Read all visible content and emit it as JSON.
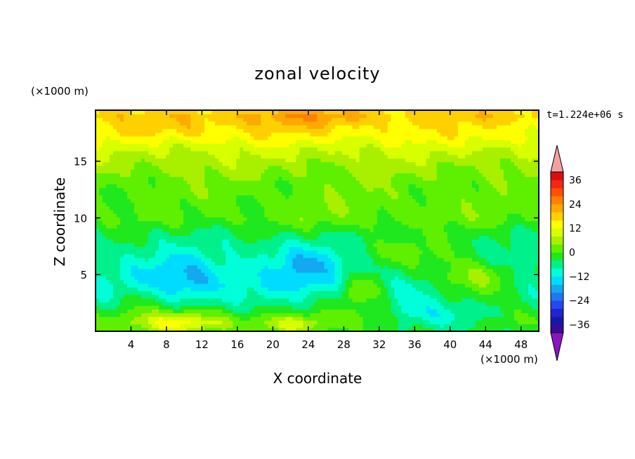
{
  "chart_data": {
    "type": "heatmap",
    "title": "zonal velocity",
    "xlabel": "X coordinate",
    "ylabel": "Z coordinate",
    "x_unit": "(×1000 m)",
    "y_unit": "(×1000 m)",
    "time_label": "t=1.224e+06 s",
    "xlim": [
      0,
      50
    ],
    "ylim": [
      0,
      19.5
    ],
    "x_ticks": [
      4,
      8,
      12,
      16,
      20,
      24,
      28,
      32,
      36,
      40,
      44,
      48
    ],
    "y_ticks": [
      5,
      10,
      15
    ],
    "colorbar": {
      "levels": [
        -40,
        -36,
        -32,
        -28,
        -24,
        -20,
        -16,
        -12,
        -8,
        -4,
        0,
        4,
        8,
        12,
        16,
        20,
        24,
        28,
        32,
        36,
        40
      ],
      "colors": [
        "#3a0a9a",
        "#1818a8",
        "#1f24d0",
        "#2348f0",
        "#1e78f0",
        "#14a8f0",
        "#00dcff",
        "#00ffd8",
        "#00f08c",
        "#20e81e",
        "#5ef000",
        "#a8f000",
        "#d8ff00",
        "#ffff00",
        "#ffd000",
        "#ffa800",
        "#ff8000",
        "#ff5000",
        "#f02814",
        "#d81010"
      ],
      "under_color": "#8a14c0",
      "over_color": "#f4a0a0",
      "tick_values": [
        -36,
        -24,
        -12,
        0,
        12,
        24,
        36
      ]
    },
    "field": {
      "base_profile": [
        [
          0,
          -1
        ],
        [
          1,
          1
        ],
        [
          2,
          -3
        ],
        [
          3,
          -7
        ],
        [
          4,
          -9
        ],
        [
          5,
          -8
        ],
        [
          6,
          -7
        ],
        [
          7,
          -6
        ],
        [
          8,
          -5
        ],
        [
          9,
          -3
        ],
        [
          10,
          0
        ],
        [
          11,
          0
        ],
        [
          12,
          1
        ],
        [
          13,
          2
        ],
        [
          14,
          4
        ],
        [
          15,
          6
        ],
        [
          16,
          9
        ],
        [
          17,
          13
        ],
        [
          18,
          15
        ],
        [
          19,
          18
        ],
        [
          19.5,
          16
        ]
      ],
      "features": [
        {
          "x": 10,
          "z": 4.8,
          "rx": 5,
          "rz": 2.0,
          "amp": -9
        },
        {
          "x": 23.5,
          "z": 6.0,
          "rx": 4.5,
          "rz": 2.0,
          "amp": -9
        },
        {
          "x": 41,
          "z": 1.2,
          "rx": 4,
          "rz": 1.2,
          "amp": -10
        },
        {
          "x": 42.5,
          "z": 4.6,
          "rx": 4.5,
          "rz": 1.7,
          "amp": 14
        },
        {
          "x": 30,
          "z": 3.7,
          "rx": 2.5,
          "rz": 1.4,
          "amp": 11
        },
        {
          "x": 10,
          "z": 0.7,
          "rx": 5,
          "rz": 0.9,
          "amp": 13
        },
        {
          "x": 22,
          "z": 0.6,
          "rx": 3.5,
          "rz": 0.8,
          "amp": 8
        },
        {
          "x": 36,
          "z": 1.5,
          "rx": 3,
          "rz": 1.4,
          "amp": -6
        },
        {
          "x": 35,
          "z": 7.0,
          "rx": 6,
          "rz": 1.5,
          "amp": 7
        },
        {
          "x": 5,
          "z": 3.0,
          "rx": 3,
          "rz": 1.5,
          "amp": 5
        },
        {
          "x": 23,
          "z": 18.8,
          "rx": 8,
          "rz": 1.2,
          "amp": 5
        },
        {
          "x": 10,
          "z": 17.8,
          "rx": 5,
          "rz": 0.9,
          "amp": 3
        },
        {
          "x": 32,
          "z": 10.5,
          "rx": 16,
          "rz": 2.0,
          "amp": 2.5
        }
      ]
    }
  }
}
